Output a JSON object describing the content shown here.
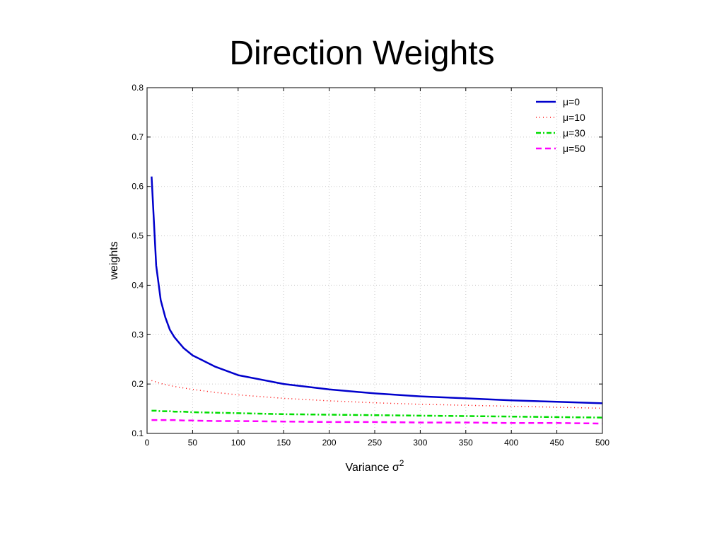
{
  "slide": {
    "title": "Direction Weights"
  },
  "chart_data": {
    "type": "line",
    "title": "",
    "xlabel": "Variance σ",
    "xlabel_superscript": "2",
    "ylabel": "weights",
    "xlim": [
      0,
      500
    ],
    "ylim": [
      0.1,
      0.8
    ],
    "x_ticks": [
      0,
      50,
      100,
      150,
      200,
      250,
      300,
      350,
      400,
      450,
      500
    ],
    "y_ticks": [
      0.1,
      0.2,
      0.3,
      0.4,
      0.5,
      0.6,
      0.7,
      0.8
    ],
    "grid": true,
    "legend_position": "top-right",
    "x": [
      5,
      10,
      15,
      20,
      25,
      30,
      40,
      50,
      75,
      100,
      150,
      200,
      250,
      300,
      350,
      400,
      450,
      500
    ],
    "series": [
      {
        "name": "μ=0",
        "color": "#0000cc",
        "style": "solid",
        "values": [
          0.62,
          0.44,
          0.37,
          0.335,
          0.31,
          0.295,
          0.273,
          0.258,
          0.235,
          0.218,
          0.2,
          0.189,
          0.181,
          0.175,
          0.171,
          0.167,
          0.164,
          0.161
        ]
      },
      {
        "name": "μ=10",
        "color": "#ff0000",
        "style": "dotted",
        "values": [
          0.207,
          0.204,
          0.201,
          0.199,
          0.197,
          0.195,
          0.192,
          0.189,
          0.183,
          0.178,
          0.171,
          0.166,
          0.162,
          0.159,
          0.157,
          0.155,
          0.153,
          0.151
        ]
      },
      {
        "name": "μ=30",
        "color": "#00dd00",
        "style": "dashdot",
        "values": [
          0.146,
          0.146,
          0.145,
          0.145,
          0.145,
          0.144,
          0.144,
          0.143,
          0.142,
          0.141,
          0.139,
          0.138,
          0.137,
          0.136,
          0.135,
          0.134,
          0.133,
          0.132
        ]
      },
      {
        "name": "μ=50",
        "color": "#ff00ff",
        "style": "dashed",
        "values": [
          0.127,
          0.127,
          0.127,
          0.127,
          0.127,
          0.127,
          0.126,
          0.126,
          0.125,
          0.125,
          0.124,
          0.123,
          0.123,
          0.122,
          0.122,
          0.121,
          0.121,
          0.12
        ]
      }
    ]
  }
}
